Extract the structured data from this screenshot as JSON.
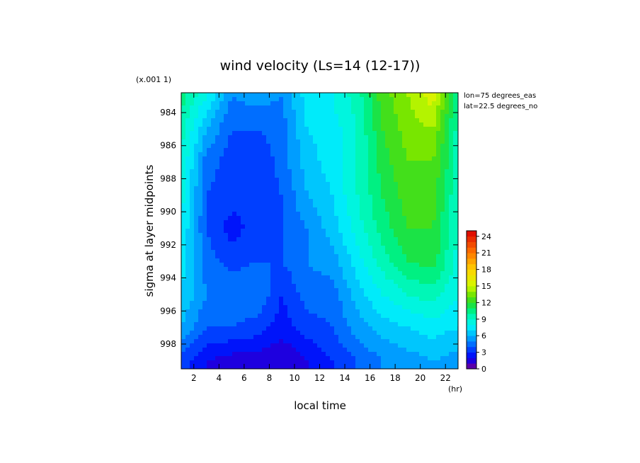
{
  "chart_data": {
    "type": "heatmap",
    "title": "wind velocity (Ls=14 (12-17))",
    "xlabel": "local time",
    "ylabel": "sigma at layer midpoints",
    "x_unit": "(hr)",
    "y_scale_note": "(x.001 1)",
    "annotations": [
      "lon=75 degrees_eas",
      "lat=22.5 degrees_no"
    ],
    "x_ticks": [
      "2",
      "4",
      "6",
      "8",
      "10",
      "12",
      "14",
      "16",
      "18",
      "20",
      "22"
    ],
    "y_ticks": [
      "984",
      "986",
      "988",
      "990",
      "992",
      "994",
      "996",
      "998"
    ],
    "xlim": [
      1,
      23
    ],
    "ylim": [
      999.5,
      982.8
    ],
    "colorbar": {
      "ticks": [
        "0",
        "3",
        "6",
        "9",
        "12",
        "15",
        "18",
        "21",
        "24"
      ],
      "range": [
        0,
        25
      ]
    },
    "x": [
      1,
      3,
      5,
      7,
      9,
      11,
      13,
      15,
      17,
      19,
      21,
      23
    ],
    "y": [
      983,
      985,
      987,
      989,
      991,
      993,
      995,
      997,
      999
    ],
    "z": [
      [
        10.5,
        8.0,
        5.0,
        5.5,
        5.0,
        7.5,
        8.0,
        9.5,
        12.5,
        14.0,
        15.5,
        10.0
      ],
      [
        9.5,
        6.0,
        4.0,
        4.0,
        4.5,
        7.0,
        7.5,
        9.0,
        12.0,
        13.5,
        14.0,
        9.5
      ],
      [
        9.0,
        4.5,
        3.5,
        3.0,
        4.5,
        6.5,
        7.5,
        9.0,
        11.5,
        13.0,
        13.0,
        9.5
      ],
      [
        8.5,
        4.0,
        3.5,
        3.0,
        4.0,
        6.0,
        7.0,
        9.0,
        11.0,
        12.5,
        12.5,
        9.0
      ],
      [
        8.0,
        4.0,
        2.5,
        3.5,
        4.0,
        5.0,
        6.5,
        8.5,
        10.5,
        12.0,
        12.0,
        9.0
      ],
      [
        7.5,
        4.5,
        3.5,
        4.0,
        4.0,
        5.0,
        5.5,
        7.5,
        9.5,
        11.0,
        11.5,
        8.5
      ],
      [
        7.0,
        5.0,
        5.0,
        5.0,
        3.0,
        4.5,
        4.5,
        6.5,
        8.0,
        9.0,
        9.5,
        8.0
      ],
      [
        6.0,
        4.0,
        4.0,
        3.5,
        2.5,
        3.5,
        4.0,
        5.5,
        6.5,
        7.0,
        7.5,
        7.0
      ],
      [
        3.5,
        2.0,
        1.5,
        1.5,
        1.0,
        2.0,
        3.0,
        4.0,
        5.0,
        5.5,
        6.0,
        5.5
      ]
    ]
  }
}
